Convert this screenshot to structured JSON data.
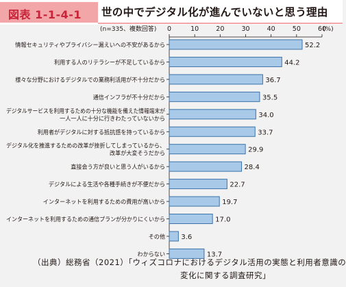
{
  "header": {
    "badge": "図表 1-1-4-1",
    "title": "世の中でデジタル化が進んでいないと思う理由",
    "accent_color": "#f2a6a8",
    "badge_text_color": "#c7243a"
  },
  "chart_data": {
    "type": "bar",
    "orientation": "horizontal",
    "note": "(n=335、複数回答)",
    "axis_unit": "(%)",
    "xlim": [
      0,
      60
    ],
    "ticks": [
      0,
      10,
      20,
      30,
      40,
      50,
      60
    ],
    "grid": false,
    "bar_color": "#a9c9e8",
    "bar_stroke": "#3b72a8",
    "categories": [
      [
        "情報セキュリティやプライバシー漏えいへの不安があるから"
      ],
      [
        "利用する人のリテラシーが不足しているから"
      ],
      [
        "様々な分野におけるデジタルでの業務利活用が不十分だから"
      ],
      [
        "通信インフラが不十分だから"
      ],
      [
        "デジタルサービスを利用するための十分な機能を備えた情報端末が",
        "一人一人に十分に行きわたっていないから"
      ],
      [
        "利用者がデジタルに対する抵抗感を持っているから"
      ],
      [
        "デジタル化を推進するための改革が挫折してしまっているから、",
        "改革が大変そうだから"
      ],
      [
        "直接会う方が良いと思う人がいるから"
      ],
      [
        "デジタルによる生活や各種手続きが不便だから"
      ],
      [
        "インターネットを利用するための費用が高いから"
      ],
      [
        "インターネットを利用するための通信プランが分かりにくいから"
      ],
      [
        "その他"
      ],
      [
        "わからない"
      ]
    ],
    "values": [
      52.2,
      44.2,
      36.7,
      35.5,
      34.0,
      33.7,
      29.9,
      28.4,
      22.7,
      19.7,
      17.0,
      3.6,
      13.7
    ]
  },
  "source": {
    "line1": "（出典）総務省（2021）「ウィズコロナにおけるデジタル活用の実態と利用者意識の",
    "line2": "変化に関する調査研究」"
  }
}
